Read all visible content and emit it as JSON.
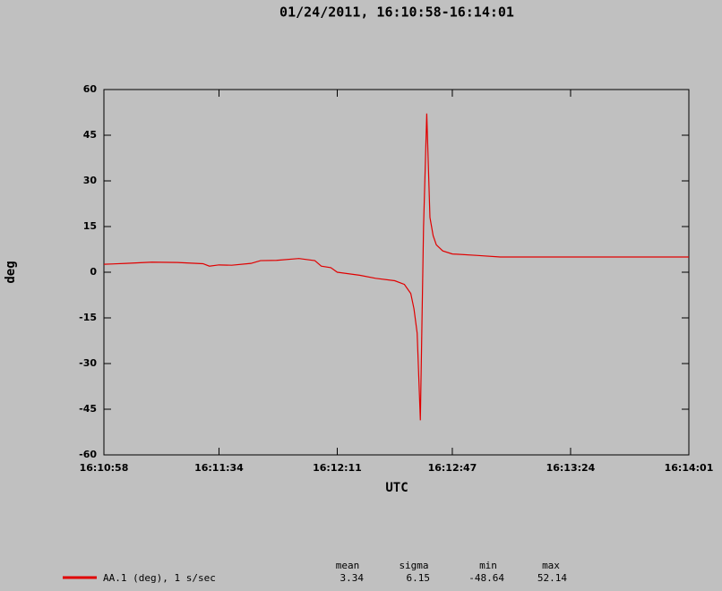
{
  "chart_data": {
    "type": "line",
    "title": "01/24/2011, 16:10:58-16:14:01",
    "x_label": "UTC",
    "y_label": "deg",
    "xlim": [
      "16:10:58",
      "16:14:01"
    ],
    "xticks": [
      "16:10:58",
      "16:11:34",
      "16:12:11",
      "16:12:47",
      "16:13:24",
      "16:14:01"
    ],
    "ylim": [
      -60,
      60
    ],
    "yticks": [
      60,
      45,
      30,
      15,
      0,
      -15,
      -30,
      -45,
      -60
    ],
    "x": [
      "16:10:58",
      "16:11:05",
      "16:11:13",
      "16:11:21",
      "16:11:29",
      "16:11:31",
      "16:11:34",
      "16:11:38",
      "16:11:44",
      "16:11:47",
      "16:11:52",
      "16:11:59",
      "16:12:04",
      "16:12:06",
      "16:12:09",
      "16:12:11",
      "16:12:18",
      "16:12:23",
      "16:12:29",
      "16:12:32",
      "16:12:34",
      "16:12:35",
      "16:12:36",
      "16:12:37",
      "16:12:38",
      "16:12:39",
      "16:12:40",
      "16:12:41",
      "16:12:42",
      "16:12:44",
      "16:12:47",
      "16:12:55",
      "16:13:02",
      "16:13:30",
      "16:14:01"
    ],
    "series": [
      {
        "name": "AA.1 (deg), 1 s/sec",
        "color": "#e00000",
        "values": [
          2.6,
          2.9,
          3.3,
          3.2,
          2.8,
          2.0,
          2.4,
          2.3,
          2.9,
          3.8,
          3.9,
          4.5,
          3.8,
          2.0,
          1.5,
          0.0,
          -1.0,
          -2.0,
          -2.8,
          -4.0,
          -7,
          -12,
          -20,
          -48.64,
          15,
          52.14,
          18,
          12,
          9,
          7,
          6,
          5.5,
          5.0,
          5.0,
          5.0
        ]
      }
    ],
    "stats": {
      "headers": [
        "mean",
        "sigma",
        "min",
        "max"
      ],
      "values": [
        3.34,
        6.15,
        -48.64,
        52.14
      ]
    }
  }
}
